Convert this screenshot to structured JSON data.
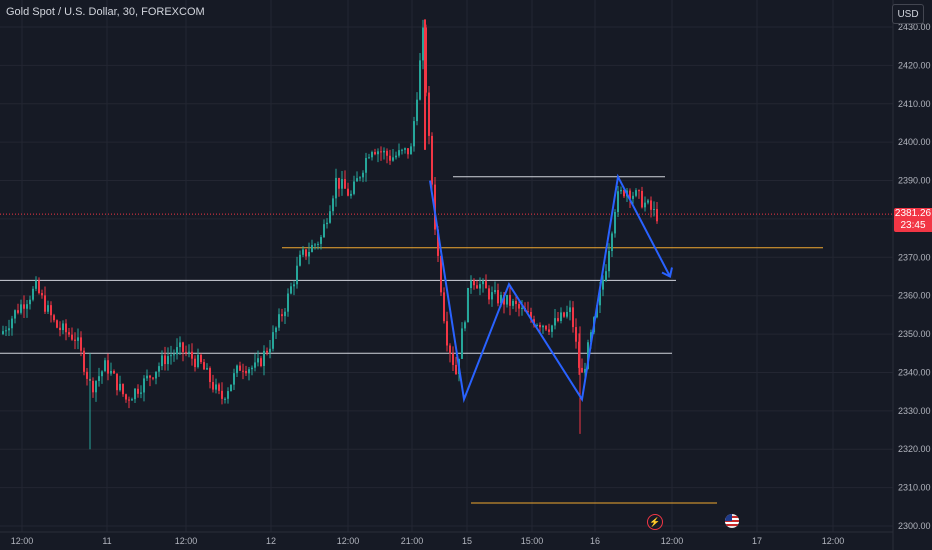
{
  "header": {
    "title": "Gold Spot / U.S. Dollar, 30, FOREXCOM",
    "currency": "USD"
  },
  "price_tag": {
    "price": "2381.26",
    "countdown": "23:45"
  },
  "icons": {
    "event_icon": "lightning-icon",
    "flag_icon": "us-flag-icon"
  },
  "colors": {
    "background": "#161a25",
    "up": "#26a69a",
    "down": "#f23645",
    "pattern": "#2962ff",
    "level_white": "#d1d4dc",
    "level_orange": "#f0a830"
  },
  "chart_data": {
    "type": "candlestick",
    "title": "Gold Spot / U.S. Dollar, 30, FOREXCOM",
    "ylim": [
      2300,
      2435
    ],
    "y_ticks": [
      "2430.00",
      "2420.00",
      "2410.00",
      "2400.00",
      "2390.00",
      "2380.00",
      "2370.00",
      "2360.00",
      "2350.00",
      "2340.00",
      "2330.00",
      "2320.00",
      "2310.00",
      "2300.00"
    ],
    "x_ticks": [
      "12:00",
      "11",
      "12:00",
      "12",
      "12:00",
      "21:00",
      "15",
      "15:00",
      "16",
      "12:00",
      "17",
      "12:00"
    ],
    "last_price": 2381.26,
    "series_close_path": [
      [
        0,
        2350
      ],
      [
        15,
        2356
      ],
      [
        35,
        2362
      ],
      [
        55,
        2352
      ],
      [
        75,
        2349
      ],
      [
        90,
        2336
      ],
      [
        105,
        2342
      ],
      [
        125,
        2333
      ],
      [
        145,
        2338
      ],
      [
        165,
        2344
      ],
      [
        180,
        2346
      ],
      [
        200,
        2342
      ],
      [
        220,
        2333
      ],
      [
        240,
        2342
      ],
      [
        255,
        2341
      ],
      [
        270,
        2348
      ],
      [
        285,
        2358
      ],
      [
        300,
        2370
      ],
      [
        320,
        2375
      ],
      [
        335,
        2390
      ],
      [
        350,
        2386
      ],
      [
        370,
        2399
      ],
      [
        390,
        2396
      ],
      [
        410,
        2398
      ],
      [
        422,
        2428
      ],
      [
        428,
        2400
      ],
      [
        435,
        2375
      ],
      [
        445,
        2350
      ],
      [
        455,
        2340
      ],
      [
        470,
        2365
      ],
      [
        490,
        2360
      ],
      [
        510,
        2358
      ],
      [
        530,
        2354
      ],
      [
        550,
        2352
      ],
      [
        570,
        2356
      ],
      [
        580,
        2338
      ],
      [
        595,
        2355
      ],
      [
        605,
        2368
      ],
      [
        615,
        2385
      ],
      [
        625,
        2388
      ],
      [
        640,
        2385
      ],
      [
        655,
        2381
      ]
    ],
    "levels": [
      {
        "price": 2391,
        "color": "white"
      },
      {
        "price": 2372.5,
        "color": "orange"
      },
      {
        "price": 2364,
        "color": "white"
      },
      {
        "price": 2345,
        "color": "white"
      },
      {
        "price": 2306,
        "color": "orange"
      }
    ],
    "pattern": [
      2390,
      2333,
      2363,
      2333,
      2391,
      2365
    ]
  }
}
